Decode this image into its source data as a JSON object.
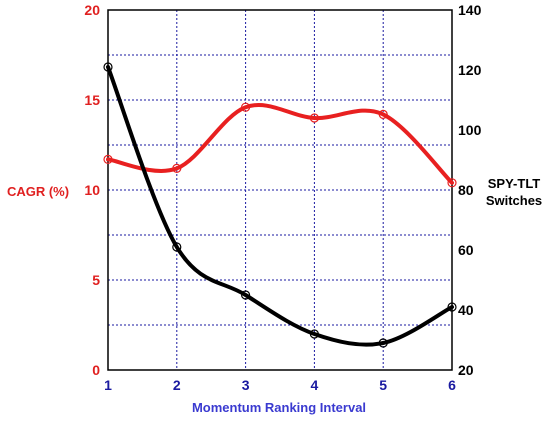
{
  "chart_data": {
    "type": "line",
    "title": "",
    "xlabel": "Momentum Ranking Interval",
    "x": [
      1,
      2,
      3,
      4,
      5,
      6
    ],
    "x_ticks": [
      "1",
      "2",
      "3",
      "4",
      "5",
      "6"
    ],
    "xlim": [
      1,
      6
    ],
    "y_left": {
      "label": "CAGR (%)",
      "range": [
        0,
        20
      ],
      "ticks": [
        "0",
        "5",
        "10",
        "15",
        "20"
      ],
      "color": "#e02020"
    },
    "y_right": {
      "label_line1": "SPY-TLT",
      "label_line2": "Switches",
      "range": [
        20,
        140
      ],
      "ticks": [
        "20",
        "40",
        "60",
        "80",
        "100",
        "120",
        "140"
      ],
      "color": "#000000"
    },
    "series": [
      {
        "axis": "left",
        "color": "#e82020",
        "values": [
          11.7,
          11.2,
          14.6,
          14.0,
          14.2,
          10.4
        ]
      },
      {
        "axis": "right",
        "color": "#000000",
        "values": [
          121,
          61,
          45,
          32,
          29,
          41
        ]
      }
    ],
    "grid": true,
    "grid_color": "#1a1aa0",
    "x_tick_color": "#1a1aa0",
    "xlabel_color": "#3a3ad0"
  }
}
